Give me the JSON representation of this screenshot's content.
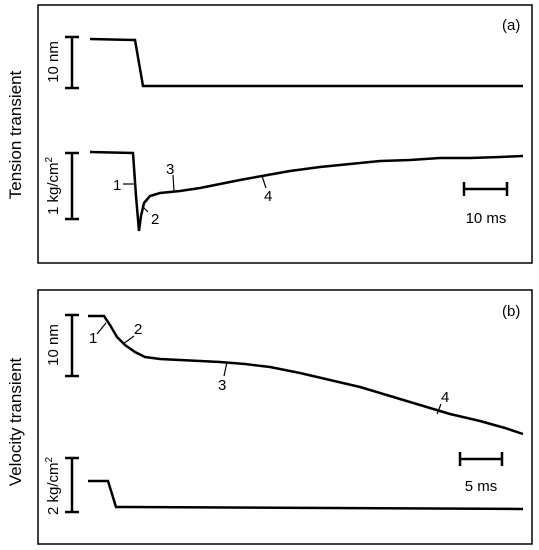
{
  "panel_a": {
    "tag": "(a)",
    "row_label": "Tension transient",
    "top_scale": "10 nm",
    "bottom_scale_base": "1 kg/cm",
    "bottom_scale_exp": "2",
    "time_scale": "10 ms",
    "phase_labels": [
      "1",
      "2",
      "3",
      "4"
    ]
  },
  "panel_b": {
    "tag": "(b)",
    "row_label": "Velocity transient",
    "top_scale": "10 nm",
    "bottom_scale_base": "2 kg/cm",
    "bottom_scale_exp": "2",
    "time_scale": "5 ms",
    "phase_labels": [
      "1",
      "2",
      "3",
      "4"
    ]
  }
}
